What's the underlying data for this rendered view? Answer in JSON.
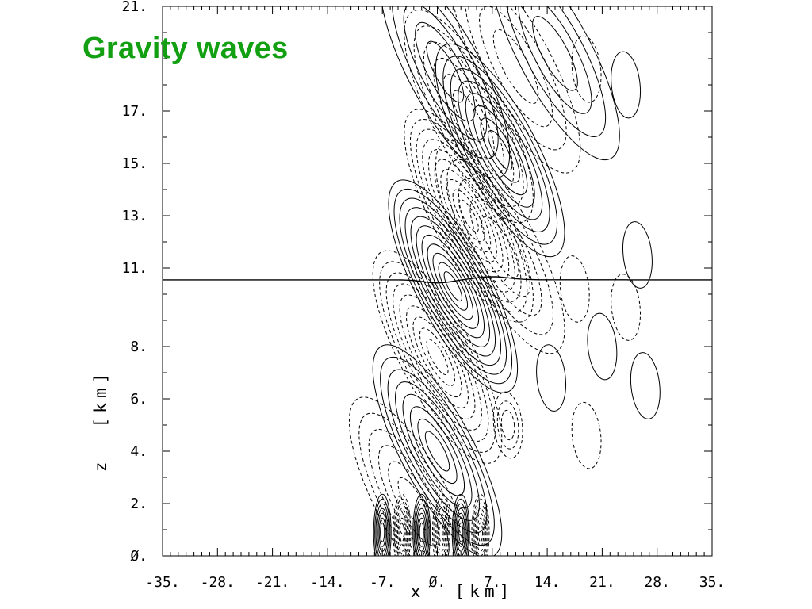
{
  "title": "Gravity waves",
  "chart_data": {
    "type": "contour",
    "xlabel": "x  [km]",
    "ylabel": "z  [km]",
    "xlim": [
      -35,
      35
    ],
    "ylim": [
      0,
      21
    ],
    "xticks": [
      -35,
      -28,
      -21,
      -14,
      -7,
      0,
      7,
      14,
      21,
      28,
      35
    ],
    "yticks": [
      0,
      2,
      4,
      6,
      8,
      11,
      13,
      15,
      17,
      21
    ],
    "xtick_labels": [
      "-35.",
      "-28.",
      "-21.",
      "-14.",
      "-7.",
      "Ø.",
      "7.",
      "14.",
      "21.",
      "28.",
      "35."
    ],
    "ytick_labels": [
      "Ø.",
      "2.",
      "4.",
      "6.",
      "8.",
      "11.",
      "13.",
      "15.",
      "17.",
      "21."
    ],
    "grid": false,
    "legend": "none",
    "line_style_positive": "solid",
    "line_style_negative": "dashed",
    "tropopause_height": 10.55,
    "features": [
      {
        "sign": "positive",
        "center": [
          8,
          15.5
        ],
        "levels": 8
      },
      {
        "sign": "negative",
        "center": [
          4,
          13
        ],
        "levels": 10
      },
      {
        "sign": "positive",
        "center": [
          2,
          10.3
        ],
        "levels": 11
      },
      {
        "sign": "negative",
        "center": [
          0,
          7.6
        ],
        "levels": 9
      },
      {
        "sign": "positive",
        "center": [
          0,
          4
        ],
        "levels": 8
      },
      {
        "sign": "negative",
        "center": [
          -3,
          2
        ],
        "levels": 6
      },
      {
        "sign": "negative",
        "center": [
          4,
          16.8
        ],
        "levels": 6
      },
      {
        "sign": "positive",
        "center": [
          1,
          18.5
        ],
        "levels": 5
      },
      {
        "sign": "negative",
        "center": [
          10,
          18.7
        ],
        "levels": 4
      },
      {
        "sign": "positive",
        "center": [
          15,
          19.2
        ],
        "levels": 4
      },
      {
        "sign": "negative",
        "center": [
          8,
          11.8
        ],
        "levels": 5
      },
      {
        "sign": "negative",
        "center": [
          9,
          5
        ],
        "levels": 3
      },
      {
        "sign": "positive",
        "center": [
          14.5,
          6.8
        ],
        "levels": 1
      },
      {
        "sign": "positive",
        "center": [
          21,
          8
        ],
        "levels": 1
      },
      {
        "sign": "positive",
        "center": [
          25.5,
          11.5
        ],
        "levels": 1
      },
      {
        "sign": "positive",
        "center": [
          26.5,
          6.5
        ],
        "levels": 1
      },
      {
        "sign": "negative",
        "center": [
          17.5,
          10.2
        ],
        "levels": 1
      },
      {
        "sign": "negative",
        "center": [
          24,
          9.5
        ],
        "levels": 1
      },
      {
        "sign": "negative",
        "center": [
          19,
          4.6
        ],
        "levels": 1
      },
      {
        "sign": "negative",
        "center": [
          19,
          18.6
        ],
        "levels": 1
      },
      {
        "sign": "positive",
        "center": [
          24,
          18
        ],
        "levels": 1
      }
    ]
  }
}
